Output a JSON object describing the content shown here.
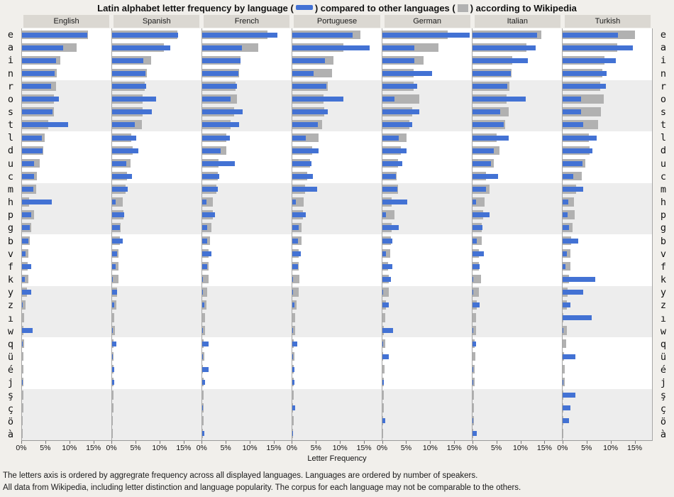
{
  "title": {
    "prefix": "Latin alphabet letter frequency by language (",
    "mid": ") compared to other languages (",
    "suffix": ") according to Wikipedia"
  },
  "colors": {
    "language_bar": "#4372d4",
    "others_bar": "#b1b1b1",
    "band_background": "#ededed",
    "page_background": "#f1efeb",
    "header_background": "#dbd8d2"
  },
  "footer": {
    "line1": "The letters axis is ordered by aggregrate frequency across all displayed languages. Languages are ordered by number of speakers.",
    "line2": "All data from Wikipedia, including letter distinction and language popularity. The corpus for each language may not be comparable to the others."
  },
  "chart_data": {
    "type": "bar",
    "orientation": "horizontal",
    "title": "Latin alphabet letter frequency by language compared to other languages according to Wikipedia",
    "xlabel": "Letter Frequency",
    "x_ticks_percent": [
      0,
      5,
      10,
      15
    ],
    "x_tick_labels": [
      "0%",
      "5%",
      "10%",
      "15%"
    ],
    "x_max_percent": 18.75,
    "legend": {
      "blue": "language",
      "gray": "other languages"
    },
    "languages": [
      "English",
      "Spanish",
      "French",
      "Portuguese",
      "German",
      "Italian",
      "Turkish"
    ],
    "letters": [
      "e",
      "a",
      "i",
      "n",
      "r",
      "o",
      "s",
      "t",
      "l",
      "d",
      "u",
      "c",
      "m",
      "h",
      "p",
      "g",
      "b",
      "v",
      "f",
      "k",
      "y",
      "z",
      "ı",
      "w",
      "q",
      "ü",
      "é",
      "j",
      "ş",
      "ç",
      "ö",
      "à"
    ],
    "values": {
      "English": {
        "blue": [
          13.7,
          8.7,
          7.2,
          6.9,
          6.1,
          7.8,
          6.4,
          9.6,
          4.1,
          4.3,
          2.6,
          2.6,
          2.4,
          6.2,
          2.0,
          1.7,
          1.4,
          0.8,
          2.0,
          0.65,
          1.9,
          0.15,
          0,
          2.2,
          0.1,
          0,
          0,
          0.15,
          0,
          0,
          0,
          0
        ],
        "gray": [
          13.8,
          11.4,
          8.1,
          7.3,
          7.1,
          6.7,
          6.7,
          5.5,
          4.7,
          4.5,
          3.7,
          3.1,
          3.0,
          1.5,
          2.5,
          1.9,
          1.7,
          1.3,
          1.2,
          1.4,
          1.0,
          0.8,
          0.5,
          0.3,
          0.45,
          0.35,
          0.35,
          0.3,
          0.25,
          0.25,
          0.2,
          0.15
        ]
      },
      "Spanish": {
        "blue": [
          13.9,
          12.2,
          6.6,
          7.0,
          7.1,
          9.2,
          8.4,
          4.7,
          5.0,
          5.5,
          3.0,
          4.2,
          3.2,
          0.7,
          2.6,
          1.7,
          2.2,
          1.1,
          0.8,
          0.15,
          1.0,
          0.45,
          0,
          0.1,
          0.85,
          0.1,
          0.45,
          0.45,
          0,
          0,
          0,
          0
        ],
        "gray": [
          13.7,
          10.8,
          8.2,
          7.3,
          6.9,
          6.4,
          6.4,
          6.2,
          4.0,
          4.3,
          3.9,
          3.1,
          2.9,
          2.3,
          2.4,
          1.8,
          1.6,
          1.3,
          1.3,
          1.3,
          1.0,
          0.85,
          0.5,
          0.6,
          0.35,
          0.35,
          0.3,
          0.3,
          0.25,
          0.25,
          0.2,
          0.15
        ]
      },
      "French": {
        "blue": [
          15.8,
          8.3,
          8.1,
          7.6,
          7.3,
          6.0,
          8.5,
          7.8,
          5.8,
          3.9,
          6.8,
          3.5,
          3.2,
          0.85,
          2.7,
          1.1,
          1.1,
          1.9,
          1.1,
          0.1,
          0.2,
          0.4,
          0,
          0.15,
          1.3,
          0.05,
          1.4,
          0.55,
          0,
          0.1,
          0,
          0.5
        ],
        "gray": [
          13.7,
          11.8,
          8.0,
          7.8,
          7.0,
          7.3,
          6.7,
          5.9,
          5.0,
          5.0,
          3.4,
          3.2,
          3.0,
          2.3,
          2.2,
          1.9,
          1.7,
          1.3,
          1.3,
          1.4,
          1.1,
          0.85,
          0.55,
          0.6,
          0.3,
          0.4,
          0.2,
          0.3,
          0.25,
          0.25,
          0.25,
          0.1
        ]
      },
      "Portuguese": {
        "blue": [
          12.7,
          16.2,
          6.9,
          4.4,
          7.2,
          10.7,
          7.4,
          5.4,
          2.9,
          5.5,
          4.0,
          4.3,
          5.2,
          0.7,
          2.8,
          1.4,
          1.25,
          1.8,
          1.25,
          0.1,
          0.05,
          0.4,
          0,
          0.1,
          1.1,
          0.05,
          0.4,
          0.4,
          0,
          0.55,
          0,
          0.1
        ],
        "gray": [
          14.3,
          10.7,
          8.7,
          8.4,
          7.4,
          6.6,
          6.7,
          6.3,
          5.5,
          4.2,
          3.7,
          3.1,
          2.7,
          2.4,
          2.2,
          2.0,
          1.9,
          1.3,
          1.3,
          1.5,
          1.3,
          0.85,
          0.6,
          0.65,
          0.3,
          0.4,
          0.3,
          0.3,
          0.3,
          0.2,
          0.3,
          0.2
        ]
      },
      "German": {
        "blue": [
          18.3,
          6.7,
          6.7,
          10.4,
          7.3,
          2.5,
          7.7,
          6.3,
          3.4,
          5.1,
          4.1,
          2.9,
          3.1,
          5.2,
          0.7,
          3.4,
          2.1,
          0.8,
          2.05,
          1.75,
          0.1,
          1.4,
          0,
          2.3,
          0.05,
          1.3,
          0,
          0.35,
          0,
          0,
          0.65,
          0
        ],
        "gray": [
          13.7,
          11.8,
          8.7,
          6.6,
          6.5,
          7.7,
          6.3,
          5.7,
          5.0,
          3.9,
          3.3,
          3.0,
          3.2,
          1.9,
          2.6,
          1.9,
          1.75,
          1.6,
          1.25,
          1.3,
          1.3,
          0.8,
          0.6,
          0.3,
          0.55,
          0.2,
          0.45,
          0.35,
          0.35,
          0.35,
          0.2,
          0.2
        ]
      },
      "Italian": {
        "blue": [
          13.5,
          13.3,
          11.6,
          8.1,
          7.3,
          11.2,
          5.8,
          6.6,
          7.6,
          4.5,
          3.8,
          5.4,
          2.9,
          0.75,
          3.5,
          2.1,
          0.9,
          2.4,
          1.55,
          0.1,
          0.1,
          1.55,
          0,
          0.1,
          0.7,
          0,
          0.05,
          0.05,
          0,
          0,
          0.05,
          0.9
        ],
        "gray": [
          14.5,
          11.3,
          8.3,
          8.2,
          7.8,
          7.1,
          7.6,
          6.85,
          5.1,
          5.6,
          4.5,
          2.8,
          3.6,
          2.5,
          2.2,
          1.9,
          2.0,
          1.3,
          1.4,
          1.8,
          1.4,
          0.95,
          0.7,
          0.7,
          0.45,
          0.55,
          0.45,
          0.45,
          0.35,
          0.35,
          0.35,
          0.1
        ]
      },
      "Turkish": {
        "blue": [
          11.6,
          14.8,
          11.2,
          9.3,
          9.1,
          3.8,
          3.9,
          4.3,
          7.1,
          6.3,
          4.2,
          2.2,
          4.3,
          1.2,
          1.0,
          1.3,
          3.2,
          0.9,
          0.6,
          6.9,
          4.3,
          1.7,
          6.1,
          0.1,
          0,
          2.7,
          0,
          0.15,
          2.7,
          1.7,
          1.4,
          0
        ],
        "gray": [
          15.2,
          11.5,
          8.8,
          8.3,
          7.9,
          8.6,
          8.1,
          7.5,
          5.5,
          5.6,
          4.8,
          4.0,
          2.9,
          2.4,
          2.6,
          2.1,
          1.8,
          1.6,
          1.7,
          1.4,
          1.0,
          0.9,
          0.1,
          0.9,
          0.7,
          0.3,
          0.5,
          0.5,
          0.1,
          0.15,
          0.2,
          0.2
        ]
      }
    }
  }
}
